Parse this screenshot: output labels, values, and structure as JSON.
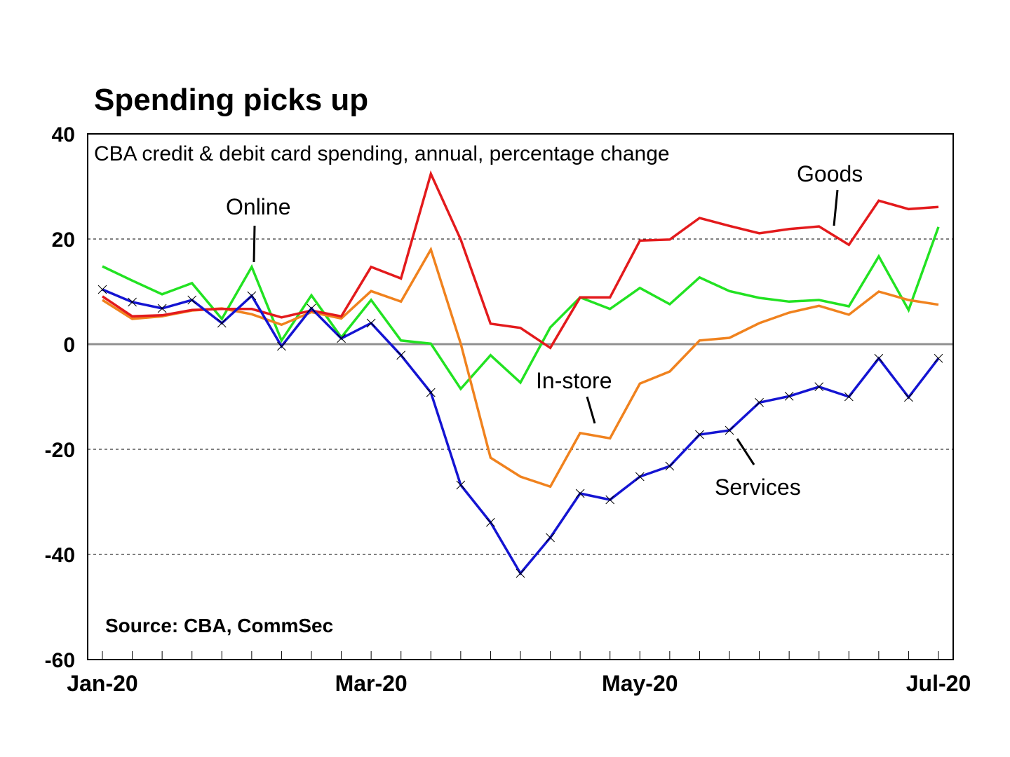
{
  "chart_data": {
    "type": "line",
    "title": "Spending picks up",
    "subtitle": "CBA credit & debit card spending, annual, percentage change",
    "source": "Source: CBA, CommSec",
    "xlabel": "",
    "ylabel": "",
    "ylim": [
      -60,
      40
    ],
    "yticks": [
      40,
      20,
      0,
      -20,
      -40,
      -60
    ],
    "ytick_labels": [
      "40",
      "20",
      "0",
      "-20",
      "-40",
      "-60"
    ],
    "xtick_labels": [
      {
        "label": "Jan-20",
        "index": 0
      },
      {
        "label": "Mar-20",
        "index": 9
      },
      {
        "label": "May-20",
        "index": 18
      },
      {
        "label": "Jul-20",
        "index": 28
      }
    ],
    "n_points": 29,
    "grid": "horizontal dotted",
    "zero_line": true,
    "series": [
      {
        "name": "Goods",
        "color": "#e31a1c",
        "values": [
          9.1,
          5.3,
          5.5,
          6.5,
          6.7,
          6.7,
          5.1,
          6.4,
          5.3,
          14.7,
          12.5,
          32.4,
          19.9,
          3.9,
          3.1,
          -0.7,
          8.9,
          8.9,
          19.7,
          19.9,
          24.0,
          22.5,
          21.1,
          21.9,
          22.4,
          18.9,
          27.3,
          25.7,
          26.1
        ],
        "marker": "none",
        "label": {
          "text": "Goods"
        }
      },
      {
        "name": "Online",
        "color": "#22e222",
        "values": [
          14.8,
          12.1,
          9.5,
          11.6,
          4.8,
          14.7,
          0.7,
          9.3,
          1.3,
          8.4,
          0.7,
          0.1,
          -8.5,
          -2.1,
          -7.3,
          3.2,
          8.9,
          6.7,
          10.7,
          7.6,
          12.7,
          10.1,
          8.8,
          8.1,
          8.4,
          7.2,
          16.7,
          6.5,
          22.3
        ],
        "marker": "none",
        "label": {
          "text": "Online"
        }
      },
      {
        "name": "In-store",
        "color": "#f0821e",
        "values": [
          8.4,
          4.8,
          5.3,
          6.4,
          6.8,
          5.7,
          3.7,
          6.1,
          4.9,
          10.1,
          8.1,
          18.0,
          0.1,
          -21.6,
          -25.2,
          -27.1,
          -16.9,
          -17.9,
          -7.5,
          -5.2,
          0.7,
          1.2,
          4.0,
          6.0,
          7.3,
          5.6,
          10.0,
          8.4,
          7.5
        ],
        "marker": "none",
        "label": {
          "text": "In-store"
        }
      },
      {
        "name": "Services",
        "color": "#1414d2",
        "values": [
          10.4,
          8.0,
          6.8,
          8.4,
          4.0,
          9.2,
          -0.4,
          6.8,
          1.1,
          4.0,
          -2.1,
          -9.2,
          -26.8,
          -33.9,
          -43.6,
          -36.8,
          -28.4,
          -29.6,
          -25.2,
          -23.2,
          -17.2,
          -16.4,
          -11.1,
          -9.9,
          -8.1,
          -10.0,
          -2.7,
          -10.1,
          -2.7
        ]
      }
    ]
  }
}
